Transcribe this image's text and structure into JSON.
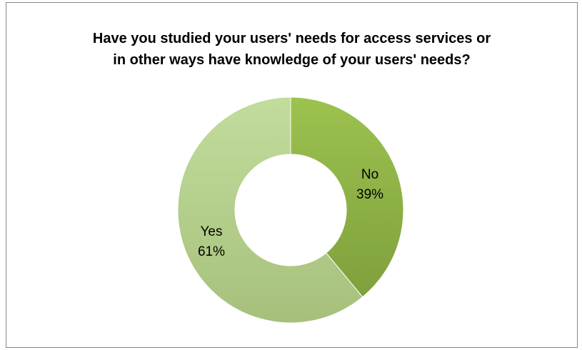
{
  "chart_data": {
    "type": "pie",
    "style": "donut",
    "title_lines": [
      "Have you studied your users' needs for access services or",
      "in other ways have knowledge of your users' needs?"
    ],
    "categories": [
      "No",
      "Yes"
    ],
    "values": [
      39,
      61
    ],
    "value_labels": [
      "39%",
      "61%"
    ],
    "colors": [
      "#93b74a",
      "#b7d28e"
    ],
    "legend": "none"
  }
}
